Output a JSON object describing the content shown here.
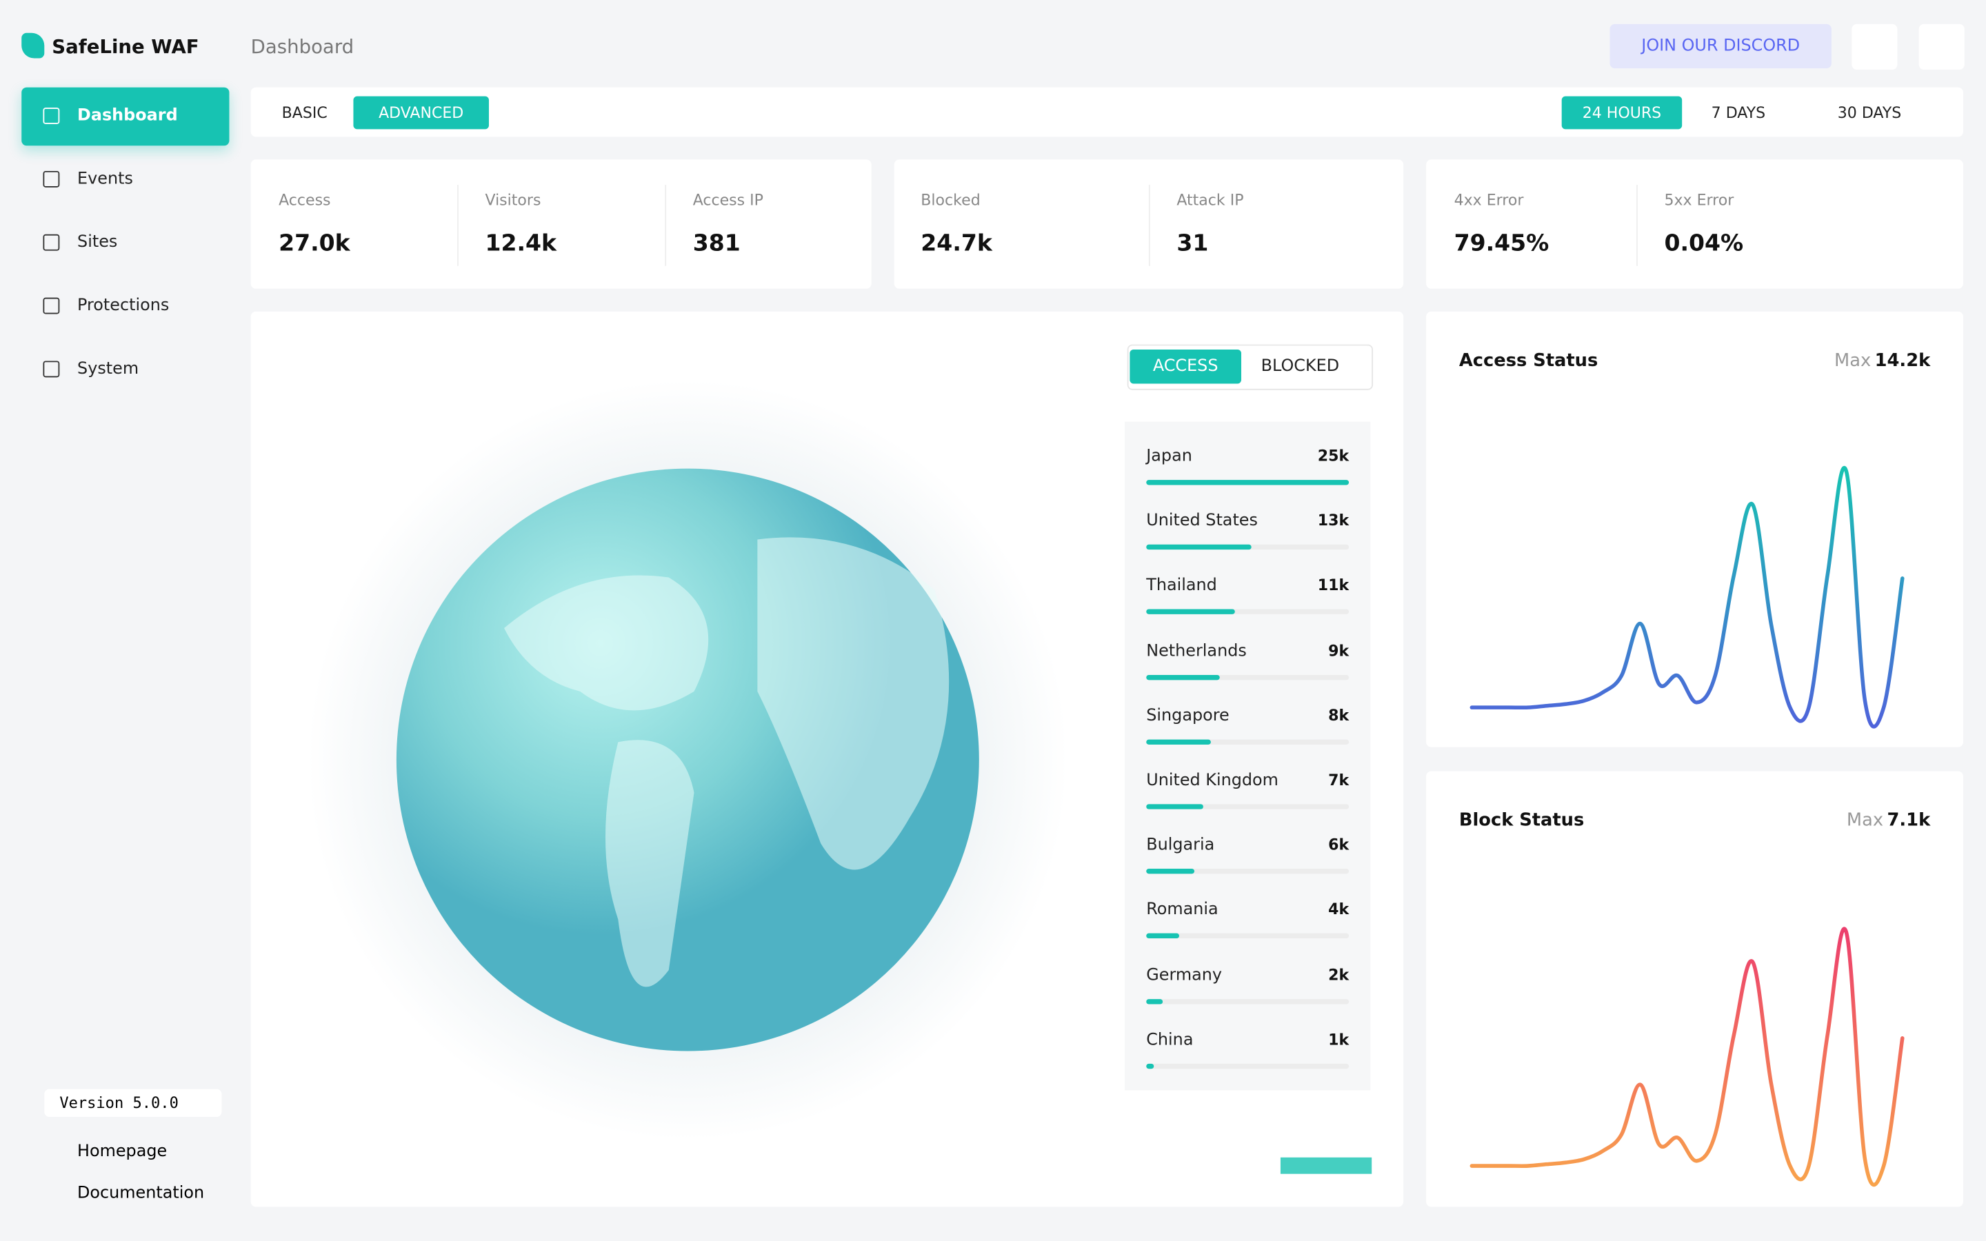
{
  "sidebar": {
    "brand": "SafeLine WAF",
    "nav": [
      "Dashboard",
      "Events",
      "Sites",
      "Protections",
      "System"
    ],
    "version": "Version 5.0.0",
    "links": [
      "Homepage",
      "Documentation"
    ]
  },
  "header": {
    "title": "Dashboard",
    "discord": "JOIN OUR DISCORD"
  },
  "tabs": {
    "mode": [
      "BASIC",
      "ADVANCED"
    ],
    "range": [
      "24 HOURS",
      "7 DAYS",
      "30 DAYS"
    ]
  },
  "stats": [
    {
      "label": "Access",
      "value": "27.0k"
    },
    {
      "label": "Visitors",
      "value": "12.4k"
    },
    {
      "label": "Access IP",
      "value": "381"
    },
    {
      "label": "Blocked",
      "value": "24.7k"
    },
    {
      "label": "Attack IP",
      "value": "31"
    },
    {
      "label": "4xx Error",
      "value": "79.45%"
    },
    {
      "label": "5xx Error",
      "value": "0.04%"
    }
  ],
  "map": {
    "toggle": [
      "ACCESS",
      "BLOCKED"
    ],
    "countries": [
      {
        "name": "Japan",
        "value": 25000,
        "label": "25k"
      },
      {
        "name": "United States",
        "value": 13000,
        "label": "13k"
      },
      {
        "name": "Thailand",
        "value": 11000,
        "label": "11k"
      },
      {
        "name": "Netherlands",
        "value": 9000,
        "label": "9k"
      },
      {
        "name": "Singapore",
        "value": 8000,
        "label": "8k"
      },
      {
        "name": "United Kingdom",
        "value": 7000,
        "label": "7k"
      },
      {
        "name": "Bulgaria",
        "value": 6000,
        "label": "6k"
      },
      {
        "name": "Romania",
        "value": 4000,
        "label": "4k"
      },
      {
        "name": "Germany",
        "value": 2000,
        "label": "2k"
      },
      {
        "name": "China",
        "value": 1000,
        "label": "1k"
      }
    ]
  },
  "access_status": {
    "title": "Access Status",
    "max_prefix": "Max",
    "max": "14.2k",
    "values": [
      0.1,
      0.1,
      0.1,
      0.1,
      0.2,
      0.3,
      0.5,
      1.0,
      2.0,
      5.1,
      1.5,
      2.0,
      0.4,
      2.0,
      8.0,
      12.2,
      5.0,
      0.1,
      0.1,
      8.0,
      14.2,
      0.5,
      0.1,
      7.8
    ]
  },
  "block_status": {
    "title": "Block Status",
    "max_prefix": "Max",
    "max": "7.1k",
    "values": [
      0.05,
      0.05,
      0.05,
      0.05,
      0.1,
      0.15,
      0.25,
      0.5,
      1.0,
      2.5,
      0.7,
      0.9,
      0.2,
      1.0,
      4.0,
      6.2,
      2.5,
      0.05,
      0.05,
      4.0,
      7.1,
      0.25,
      0.05,
      3.9
    ]
  }
}
